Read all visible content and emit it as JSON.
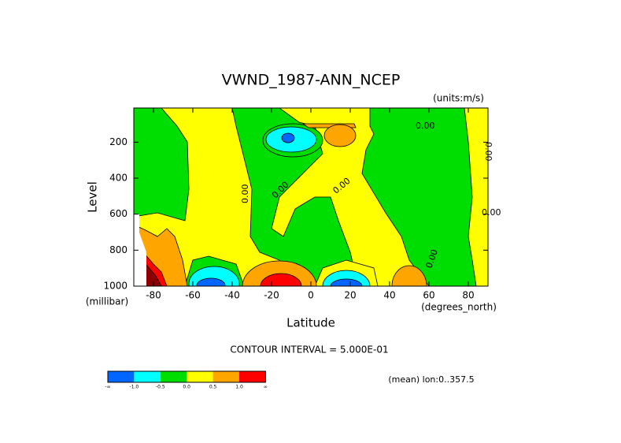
{
  "chart_data": {
    "type": "contour",
    "title": "VWND_1987-ANN_NCEP",
    "units": "(units:m/s)",
    "y_label": "Level",
    "y_units": "(millibar)",
    "x_label": "Latitude",
    "x_units": "(degrees_north)",
    "xlim": [
      -90,
      90
    ],
    "xticks": [
      -80,
      -60,
      -40,
      -20,
      0,
      20,
      40,
      60,
      80
    ],
    "ylim": [
      1000,
      10
    ],
    "yticks": [
      200,
      400,
      600,
      800,
      1000
    ],
    "contour_interval": "CONTOUR INTERVAL = 5.000E-01",
    "contour_labels": [
      "0.00",
      "0.00",
      "0.00",
      "0.00",
      "0.00",
      "0.00",
      "0.00"
    ],
    "footer": "(mean) lon:0..357.5",
    "colorbar": {
      "colors": [
        "#0066ff",
        "#00ffff",
        "#00dd00",
        "#ffff00",
        "#ffa500",
        "#ff0000"
      ],
      "labels": [
        "-∞",
        "-1.0",
        "-0.5",
        "0.0",
        "0.5",
        "1.0",
        "∞"
      ]
    }
  }
}
